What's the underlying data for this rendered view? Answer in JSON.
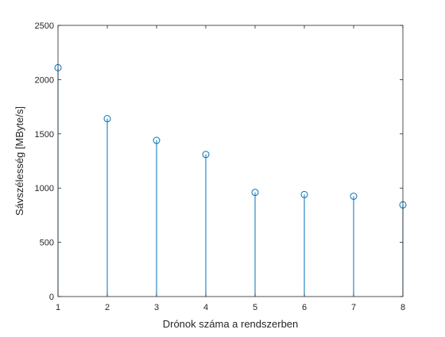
{
  "chart_data": {
    "type": "stem",
    "title": "",
    "xlabel": "Drónok száma a rendszerben",
    "ylabel": "Sávszélesség [MByte/s]",
    "xlim": [
      1,
      8
    ],
    "ylim": [
      0,
      2500
    ],
    "x_ticks": [
      "1",
      "2",
      "3",
      "4",
      "5",
      "6",
      "7",
      "8"
    ],
    "y_ticks": [
      "0",
      "500",
      "1000",
      "1500",
      "2000",
      "2500"
    ],
    "grid": false,
    "legend": "none",
    "series": [
      {
        "color": "#0072BD",
        "marker": "circle-open",
        "x": [
          1,
          2,
          3,
          4,
          5,
          6,
          7,
          8
        ],
        "y": [
          2110,
          1640,
          1440,
          1310,
          960,
          940,
          925,
          845
        ]
      }
    ]
  }
}
